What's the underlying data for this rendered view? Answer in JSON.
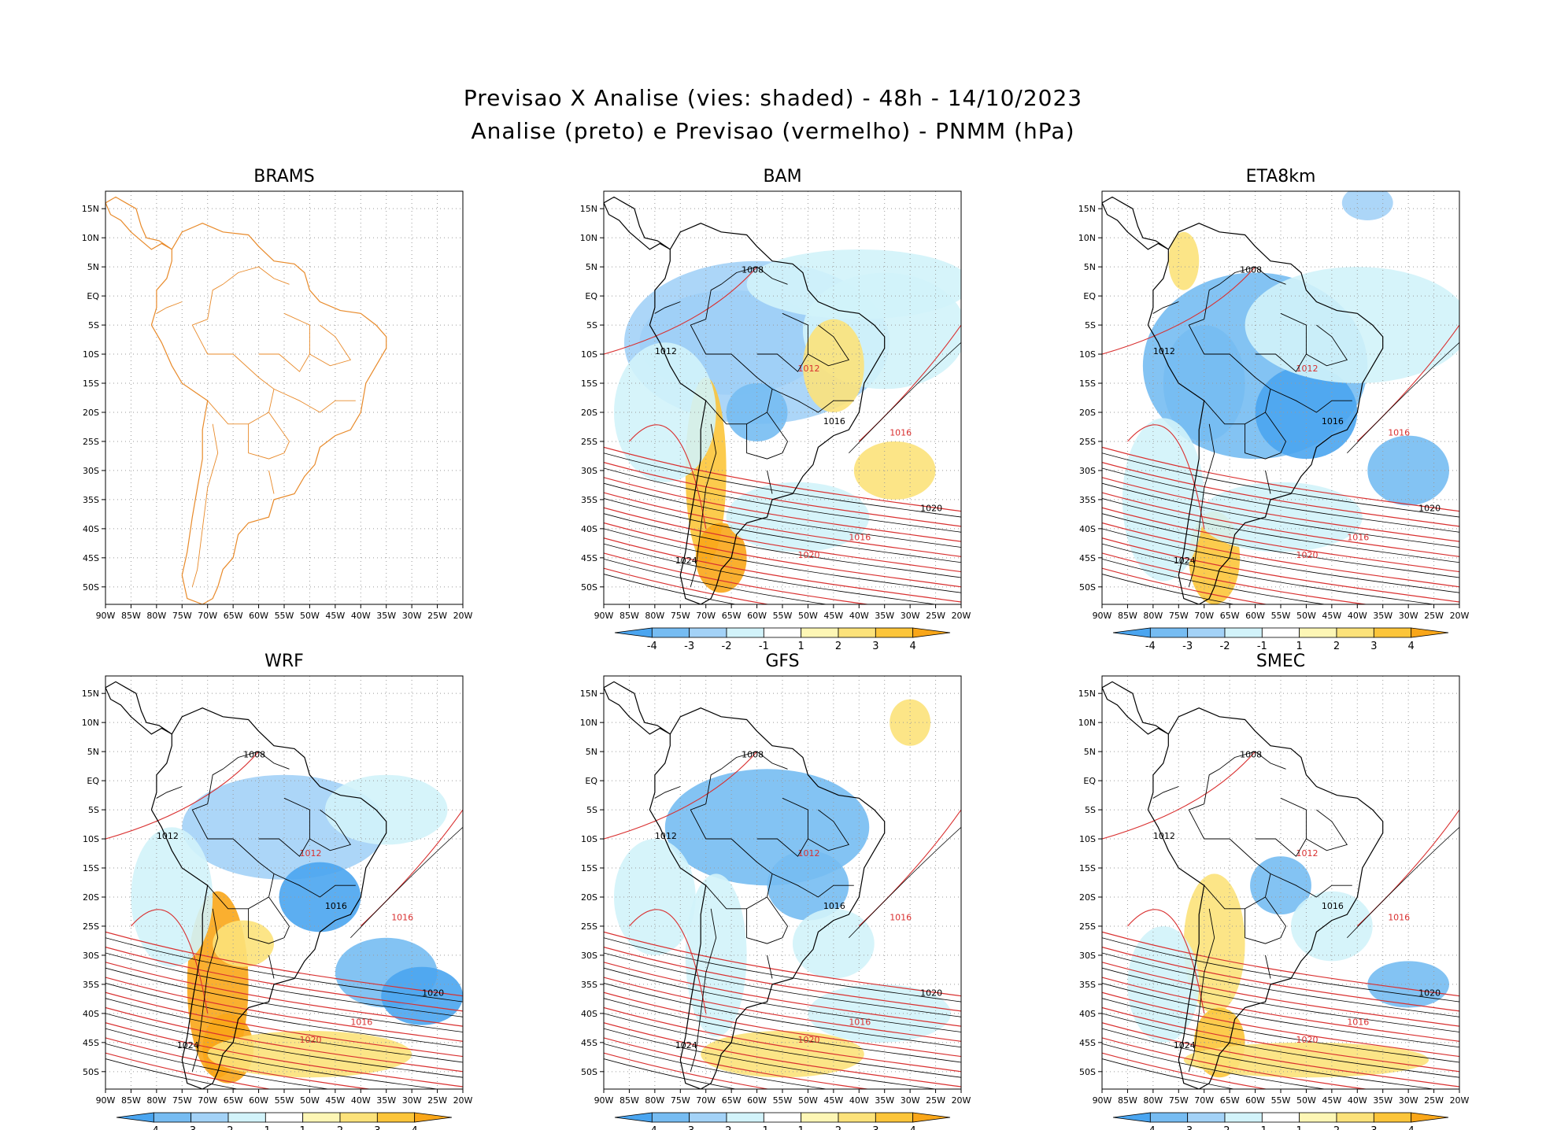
{
  "figure": {
    "title_line1": "Previsao X Analise (vies: shaded) - 48h - 14/10/2023",
    "title_line2": "Analise (preto) e Previsao (vermelho) - PNMM (hPa)"
  },
  "chart_data": {
    "type": "heatmap",
    "variable": "PNMM (hPa)",
    "shading": "bias (forecast - analysis)",
    "contours": {
      "analysis_color": "#000000",
      "forecast_color": "#d93030"
    },
    "lon_ticks": [
      "90W",
      "85W",
      "80W",
      "75W",
      "70W",
      "65W",
      "60W",
      "55W",
      "50W",
      "45W",
      "40W",
      "35W",
      "30W",
      "25W",
      "20W"
    ],
    "lat_ticks": [
      "15N",
      "10N",
      "5N",
      "EQ",
      "5S",
      "10S",
      "15S",
      "20S",
      "25S",
      "30S",
      "35S",
      "40S",
      "45S",
      "50S"
    ],
    "lon_range": [
      -90,
      -20
    ],
    "lat_range": [
      -53,
      18
    ],
    "colorbar": {
      "labels": [
        "-4",
        "-3",
        "-2",
        "-1",
        "1",
        "2",
        "3",
        "4"
      ],
      "colors": [
        "#4aa5f0",
        "#76bcf2",
        "#a3d2f7",
        "#d2f3fa",
        "#ffffff",
        "#fdf6b5",
        "#fce27a",
        "#fcc53a",
        "#f9a618"
      ]
    },
    "panels": [
      {
        "name": "BRAMS",
        "has_colorbar": false,
        "coast_color": "#e88a2a"
      },
      {
        "name": "BAM",
        "has_colorbar": true
      },
      {
        "name": "ETA8km",
        "has_colorbar": true
      },
      {
        "name": "WRF",
        "has_colorbar": true
      },
      {
        "name": "GFS",
        "has_colorbar": true
      },
      {
        "name": "SMEC",
        "has_colorbar": true
      }
    ],
    "contour_labels": [
      {
        "text": "1008",
        "lon": -63,
        "lat": 4
      },
      {
        "text": "1012",
        "lon": -52,
        "lat": -13
      },
      {
        "text": "1016",
        "lon": -47,
        "lat": -22
      },
      {
        "text": "1016",
        "lon": -34,
        "lat": -24
      },
      {
        "text": "1020",
        "lon": -28,
        "lat": -37
      },
      {
        "text": "1020",
        "lon": -52,
        "lat": -45
      },
      {
        "text": "1024",
        "lon": -76,
        "lat": -46
      },
      {
        "text": "1016",
        "lon": -42,
        "lat": -42
      },
      {
        "text": "1012",
        "lon": -80,
        "lat": -10
      }
    ]
  }
}
